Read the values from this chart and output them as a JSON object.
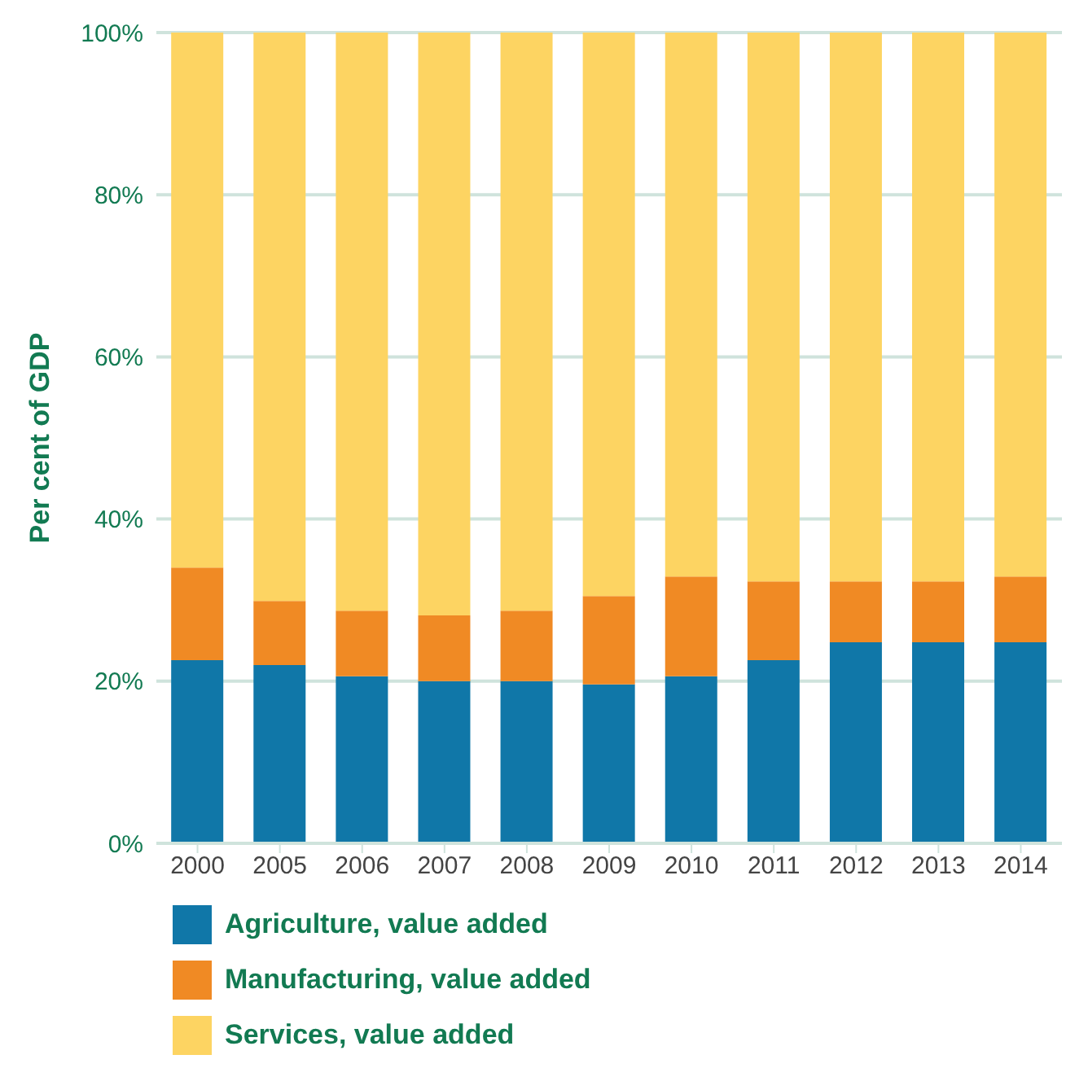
{
  "chart_data": {
    "type": "bar",
    "stacked": true,
    "ylabel": "Per cent of GDP",
    "categories": [
      "2000",
      "2005",
      "2006",
      "2007",
      "2008",
      "2009",
      "2010",
      "2011",
      "2012",
      "2013",
      "2014"
    ],
    "series": [
      {
        "name": "Agriculture, value added",
        "color": "#1077a8",
        "values": [
          22.6,
          22.0,
          20.6,
          20.0,
          20.0,
          19.6,
          20.6,
          22.6,
          24.8,
          24.8,
          24.8
        ]
      },
      {
        "name": "Manufacturing, value added",
        "color": "#f08a24",
        "values": [
          11.4,
          7.9,
          8.1,
          8.1,
          8.7,
          10.9,
          12.3,
          9.7,
          7.5,
          7.5,
          8.1
        ]
      },
      {
        "name": "Services, value added",
        "color": "#fdd462",
        "values": [
          66.0,
          70.1,
          71.3,
          71.9,
          71.3,
          69.5,
          67.1,
          67.7,
          67.7,
          67.7,
          67.1
        ]
      }
    ],
    "ylim": [
      0,
      100
    ],
    "yticks": [
      {
        "value": 0,
        "label": "0%"
      },
      {
        "value": 20,
        "label": "20%"
      },
      {
        "value": 40,
        "label": "40%"
      },
      {
        "value": 60,
        "label": "60%"
      },
      {
        "value": 80,
        "label": "80%"
      },
      {
        "value": 100,
        "label": "100%"
      }
    ],
    "grid": "y",
    "legend": "bottom"
  }
}
